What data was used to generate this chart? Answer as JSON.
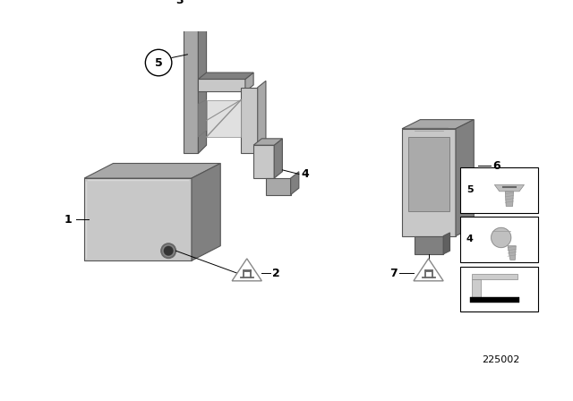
{
  "background_color": "#ffffff",
  "diagram_id": "225002",
  "gray_light": "#c8c8c8",
  "gray_mid": "#a8a8a8",
  "gray_dark": "#808080",
  "gray_darker": "#606060",
  "edge_color": "#555555",
  "label_fontsize": 9,
  "small_fontsize": 8
}
